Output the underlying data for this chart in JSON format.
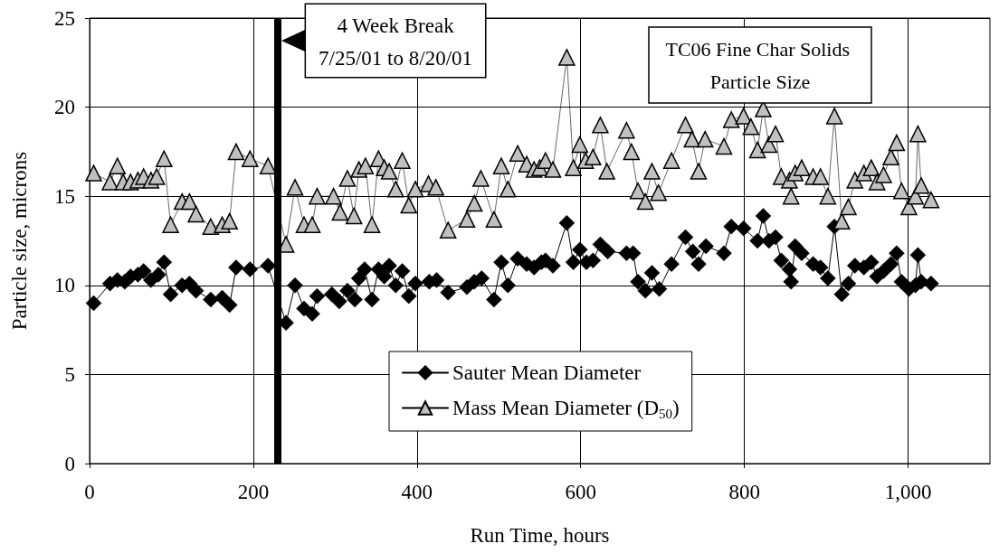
{
  "chart_data": {
    "type": "line",
    "title": "TC06 Fine Char Solids Particle Size",
    "xlabel": "Run Time, hours",
    "ylabel": "Particle size, microns",
    "xlim": [
      0,
      1100
    ],
    "xticks": [
      0,
      200,
      400,
      600,
      800,
      {
        "value": 1000,
        "label": "1,000"
      }
    ],
    "ylim": [
      0,
      25
    ],
    "yticks": [
      0,
      5,
      10,
      15,
      20,
      25
    ],
    "grid": true,
    "legend": "bottom",
    "line_style": "solid",
    "ref_lines": [
      {
        "axis": "x",
        "value": 230,
        "label": "4 Week Break\n7/25/01 to 8/20/01",
        "color": "#000000"
      }
    ],
    "series": [
      {
        "name": "Sauter Mean Diameter",
        "color": "#000000",
        "marker": "diamond",
        "x": [
          5,
          25,
          34,
          43,
          50,
          59,
          66,
          75,
          84,
          91,
          99,
          113,
          122,
          130,
          148,
          162,
          171,
          179,
          196,
          218,
          240,
          251,
          262,
          272,
          278,
          296,
          305,
          315,
          324,
          329,
          336,
          345,
          353,
          360,
          366,
          374,
          382,
          390,
          398,
          415,
          424,
          438,
          461,
          470,
          479,
          494,
          503,
          511,
          523,
          534,
          543,
          552,
          557,
          566,
          583,
          591,
          599,
          607,
          615,
          624,
          633,
          656,
          664,
          670,
          679,
          687,
          696,
          711,
          728,
          737,
          744,
          753,
          775,
          784,
          799,
          816,
          823,
          830,
          838,
          845,
          855,
          857,
          862,
          870,
          884,
          893,
          902,
          910,
          919,
          927,
          935,
          946,
          955,
          962,
          970,
          979,
          986,
          992,
          1001,
          1009,
          1012,
          1016,
          1028
        ],
        "values": [
          9.0,
          10.1,
          10.3,
          10.2,
          10.5,
          10.6,
          10.8,
          10.3,
          10.6,
          11.3,
          9.5,
          10.0,
          10.1,
          9.7,
          9.2,
          9.3,
          8.9,
          11.0,
          10.9,
          11.1,
          7.9,
          10.0,
          8.7,
          8.4,
          9.4,
          9.5,
          9.1,
          9.7,
          9.2,
          10.4,
          10.9,
          9.2,
          10.9,
          10.5,
          11.1,
          10.0,
          10.8,
          9.4,
          10.1,
          10.2,
          10.3,
          9.6,
          9.9,
          10.2,
          10.4,
          9.2,
          11.3,
          10.0,
          11.5,
          11.2,
          11.0,
          11.3,
          11.4,
          11.1,
          13.5,
          11.3,
          12.0,
          11.3,
          11.4,
          12.3,
          11.9,
          11.8,
          11.8,
          10.2,
          9.7,
          10.7,
          9.8,
          11.2,
          12.7,
          11.9,
          11.2,
          12.2,
          11.8,
          13.3,
          13.2,
          12.5,
          13.9,
          12.5,
          12.7,
          11.4,
          10.9,
          10.2,
          12.2,
          11.8,
          11.2,
          11.0,
          10.4,
          13.3,
          9.5,
          10.1,
          11.1,
          11.0,
          11.3,
          10.5,
          10.8,
          11.2,
          11.8,
          10.2,
          9.8,
          10.0,
          11.7,
          10.2,
          10.1
        ]
      },
      {
        "name": "Mass Mean Diameter (D$_{50}$)",
        "color": "#c0c0c0",
        "marker": "triangle",
        "x": [
          5,
          25,
          34,
          41,
          50,
          59,
          66,
          75,
          82,
          91,
          99,
          113,
          122,
          130,
          148,
          162,
          171,
          179,
          196,
          218,
          240,
          251,
          262,
          272,
          278,
          298,
          306,
          315,
          323,
          329,
          337,
          345,
          353,
          360,
          366,
          374,
          382,
          390,
          398,
          414,
          423,
          438,
          461,
          470,
          478,
          494,
          503,
          511,
          523,
          534,
          543,
          550,
          557,
          566,
          583,
          591,
          599,
          606,
          615,
          624,
          632,
          656,
          662,
          670,
          679,
          687,
          695,
          711,
          728,
          736,
          744,
          752,
          775,
          784,
          799,
          808,
          816,
          823,
          830,
          838,
          845,
          855,
          857,
          862,
          870,
          884,
          893,
          902,
          910,
          919,
          927,
          935,
          946,
          955,
          962,
          970,
          979,
          986,
          992,
          1001,
          1009,
          1012,
          1016,
          1028
        ],
        "values": [
          16.3,
          15.8,
          16.7,
          15.8,
          15.8,
          15.9,
          16.1,
          15.9,
          16.1,
          17.1,
          13.4,
          14.7,
          14.7,
          14.0,
          13.3,
          13.4,
          13.6,
          17.5,
          17.1,
          16.7,
          12.3,
          15.5,
          13.4,
          13.4,
          15.0,
          15.0,
          14.1,
          16.0,
          13.9,
          16.5,
          16.7,
          13.4,
          17.1,
          16.6,
          16.4,
          15.4,
          17.0,
          14.5,
          15.4,
          15.7,
          15.5,
          13.1,
          13.7,
          14.6,
          16.0,
          13.7,
          16.7,
          15.4,
          17.4,
          16.8,
          16.5,
          16.6,
          17.0,
          16.5,
          22.8,
          16.6,
          17.9,
          17.0,
          17.2,
          19.0,
          16.4,
          18.7,
          17.5,
          15.3,
          14.7,
          16.4,
          15.2,
          17.0,
          19.0,
          18.2,
          16.4,
          18.2,
          17.8,
          19.3,
          19.5,
          18.9,
          17.6,
          19.9,
          17.9,
          18.5,
          16.1,
          15.9,
          15.0,
          16.3,
          16.6,
          16.1,
          16.1,
          15.0,
          19.5,
          13.6,
          14.4,
          15.9,
          16.3,
          16.6,
          15.8,
          16.2,
          17.2,
          18.0,
          15.3,
          14.4,
          15.0,
          18.5,
          15.6,
          14.8
        ]
      }
    ]
  }
}
